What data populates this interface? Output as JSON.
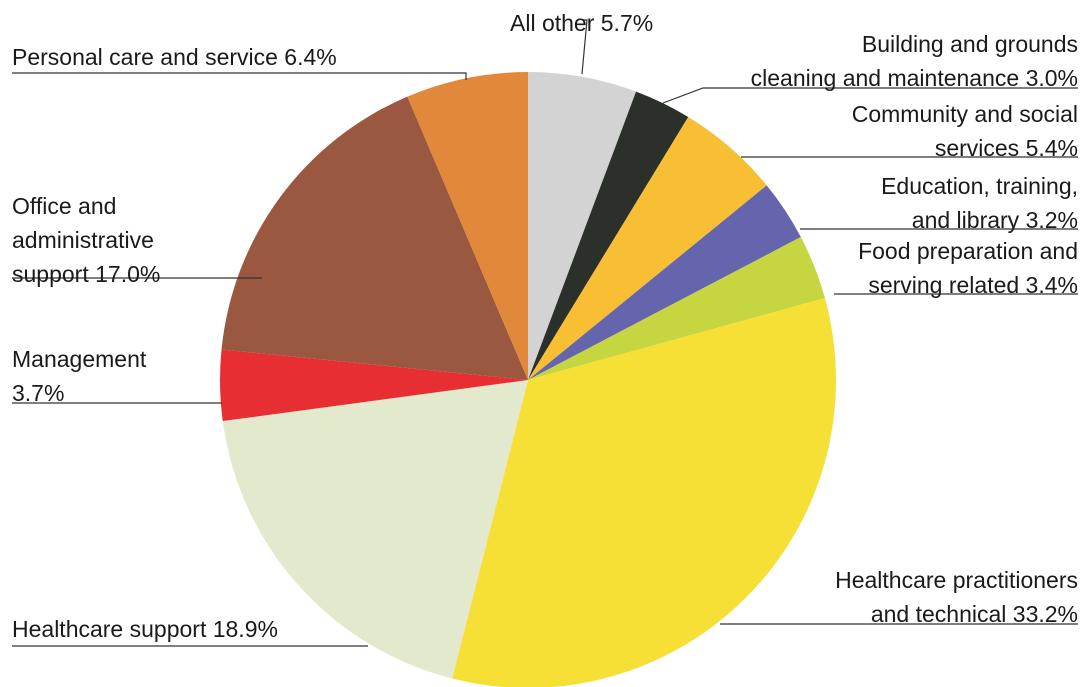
{
  "chart_data": {
    "type": "pie",
    "title": "",
    "slices": [
      {
        "label": "All other 5.7%",
        "value": 5.7,
        "color": "#d3d3d3"
      },
      {
        "label": "Building and grounds cleaning and maintenance 3.0%",
        "value": 3.0,
        "color": "#2b302b"
      },
      {
        "label": "Community and social services 5.4%",
        "value": 5.4,
        "color": "#f9bf34"
      },
      {
        "label": "Education, training, and library 3.2%",
        "value": 3.2,
        "color": "#6465ad"
      },
      {
        "label": "Food preparation and serving related 3.4%",
        "value": 3.4,
        "color": "#c6d640"
      },
      {
        "label": "Healthcare practitioners and technical 33.2%",
        "value": 33.2,
        "color": "#f6e035"
      },
      {
        "label": "Healthcare support 18.9%",
        "value": 18.9,
        "color": "#e2e9cd"
      },
      {
        "label": "Management 3.7%",
        "value": 3.7,
        "color": "#e72e32"
      },
      {
        "label": "Office and administrative support 17.0%",
        "value": 17.0,
        "color": "#9a5840"
      },
      {
        "label": "Personal care and service 6.4%",
        "value": 6.4,
        "color": "#e2883a"
      }
    ],
    "labels": [
      {
        "lines": [
          "All other 5.7%"
        ]
      },
      {
        "lines": [
          "Building and grounds",
          "cleaning and maintenance 3.0%"
        ]
      },
      {
        "lines": [
          "Community and social",
          "services 5.4%"
        ]
      },
      {
        "lines": [
          "Education, training,",
          "and library 3.2%"
        ]
      },
      {
        "lines": [
          "Food preparation and",
          "serving related 3.4%"
        ]
      },
      {
        "lines": [
          "Healthcare practitioners",
          "and technical 33.2%"
        ]
      },
      {
        "lines": [
          "Healthcare support 18.9%"
        ]
      },
      {
        "lines": [
          "Management",
          "3.7%"
        ]
      },
      {
        "lines": [
          "Office and",
          "administrative",
          "support 17.0%"
        ]
      },
      {
        "lines": [
          "Personal care and service 6.4%"
        ]
      }
    ]
  }
}
